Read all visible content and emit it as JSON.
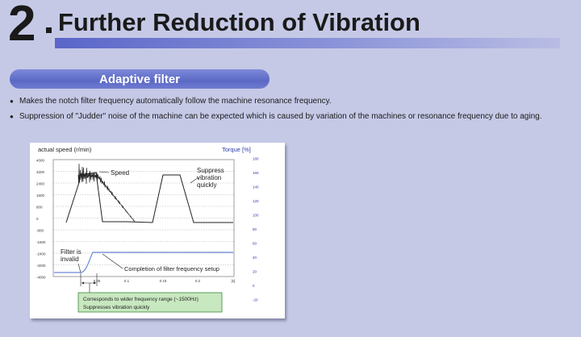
{
  "header": {
    "section_number": "2",
    "title": "Further Reduction of Vibration"
  },
  "subsection": {
    "title": "Adaptive filter"
  },
  "bullets": [
    "Makes the notch filter frequency automatically follow the machine resonance frequency.",
    "Suppression of \"Judder\" noise of the machine can be expected which is caused by variation of the machines or resonance frequency due to aging."
  ],
  "chart_data": {
    "type": "line",
    "ylabel_left": "actual speed (r/min)",
    "ylabel_right": "Torque [%]",
    "left_ticks": [
      "4000",
      "3200",
      "2400",
      "1600",
      "800",
      "0",
      "-800",
      "-1600",
      "-2400",
      "-3200",
      "-4000"
    ],
    "right_ticks": [
      "180",
      "160",
      "140",
      "120",
      "100",
      "80",
      "60",
      "40",
      "20",
      "0",
      "-20"
    ],
    "x_ticks": [
      "0.05",
      "0.1",
      "0.15",
      "0.2",
      "[s]"
    ],
    "annotations": {
      "speed": "Speed",
      "suppress_1": "Suppress",
      "suppress_2": "vibration",
      "suppress_3": "quickly",
      "filter_1": "Filter is",
      "filter_2": "invalid",
      "completion": "Completion of filter frequency setup"
    },
    "note_1": "Corresponds to wider frequency range (~1500Hz)",
    "note_2": "Suppresses vibration quickly",
    "colors": {
      "speed": "#222222",
      "filter": "#6a86d8",
      "note_bg": "#c8e8c0",
      "note_border": "#3a8a3a"
    }
  }
}
